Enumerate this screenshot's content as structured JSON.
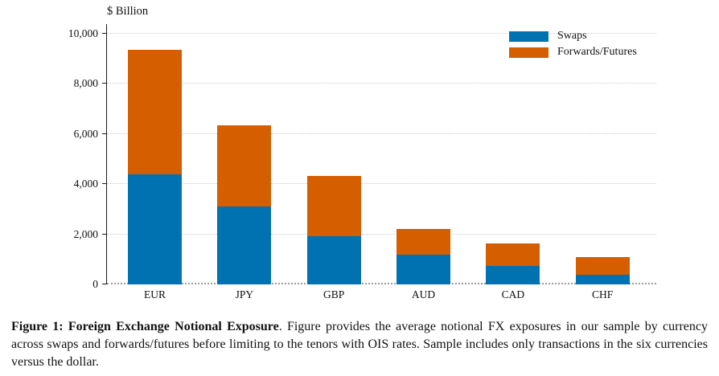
{
  "chart_data": {
    "type": "bar",
    "subtype": "stacked",
    "title": "$ Billion",
    "categories": [
      "EUR",
      "JPY",
      "GBP",
      "AUD",
      "CAD",
      "CHF"
    ],
    "series": [
      {
        "name": "Swaps",
        "color": "#0072B2",
        "values": [
          4400,
          3120,
          1930,
          1170,
          750,
          370
        ]
      },
      {
        "name": "Forwards/Futures",
        "color": "#D55E00",
        "values": [
          4950,
          3210,
          2400,
          1040,
          890,
          730
        ]
      }
    ],
    "totals": [
      9350,
      6330,
      4330,
      2210,
      1640,
      1100
    ],
    "xlabel": "",
    "ylabel": "$ Billion",
    "ylim": [
      0,
      10000
    ],
    "yticks": [
      {
        "value": 0,
        "label": "0"
      },
      {
        "value": 2000,
        "label": "2,000"
      },
      {
        "value": 4000,
        "label": "4,000"
      },
      {
        "value": 6000,
        "label": "6,000"
      },
      {
        "value": 8000,
        "label": "8,000"
      },
      {
        "value": 10000,
        "label": "10,000"
      }
    ],
    "grid": "horizontal dotted",
    "legend_position": "top-right"
  },
  "caption": {
    "heading": "Figure 1: Foreign Exchange Notional Exposure",
    "body": ". Figure provides the average notional FX exposures in our sample by currency across swaps and forwards/futures before limiting to the tenors with OIS rates. Sample includes only transactions in the six currencies versus the dollar."
  }
}
